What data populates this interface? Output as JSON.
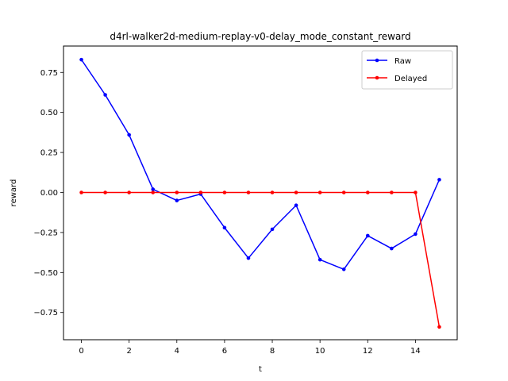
{
  "chart_data": {
    "type": "line",
    "title": "d4rl-walker2d-medium-replay-v0-delay_mode_constant_reward",
    "xlabel": "t",
    "ylabel": "reward",
    "xlim": [
      -0.75,
      15.75
    ],
    "ylim": [
      -0.92,
      0.915
    ],
    "xticks": [
      0,
      2,
      4,
      6,
      8,
      10,
      12,
      14
    ],
    "xtick_labels": [
      "0",
      "2",
      "4",
      "6",
      "8",
      "10",
      "12",
      "14"
    ],
    "yticks": [
      -0.75,
      -0.5,
      -0.25,
      0.0,
      0.25,
      0.5,
      0.75
    ],
    "ytick_labels": [
      "−0.75",
      "−0.50",
      "−0.25",
      "0.00",
      "0.25",
      "0.50",
      "0.75"
    ],
    "grid": false,
    "legend_position": "top-right",
    "x": [
      0,
      1,
      2,
      3,
      4,
      5,
      6,
      7,
      8,
      9,
      10,
      11,
      12,
      13,
      14,
      15
    ],
    "series": [
      {
        "name": "Raw",
        "color": "#0000ff",
        "marker": "circle",
        "values": [
          0.83,
          0.61,
          0.36,
          0.02,
          -0.05,
          -0.01,
          -0.22,
          -0.41,
          -0.23,
          -0.08,
          -0.42,
          -0.48,
          -0.27,
          -0.35,
          -0.26,
          0.08
        ]
      },
      {
        "name": "Delayed",
        "color": "#ff0000",
        "marker": "circle",
        "values": [
          0,
          0,
          0,
          0,
          0,
          0,
          0,
          0,
          0,
          0,
          0,
          0,
          0,
          0,
          0,
          -0.84
        ]
      }
    ]
  }
}
